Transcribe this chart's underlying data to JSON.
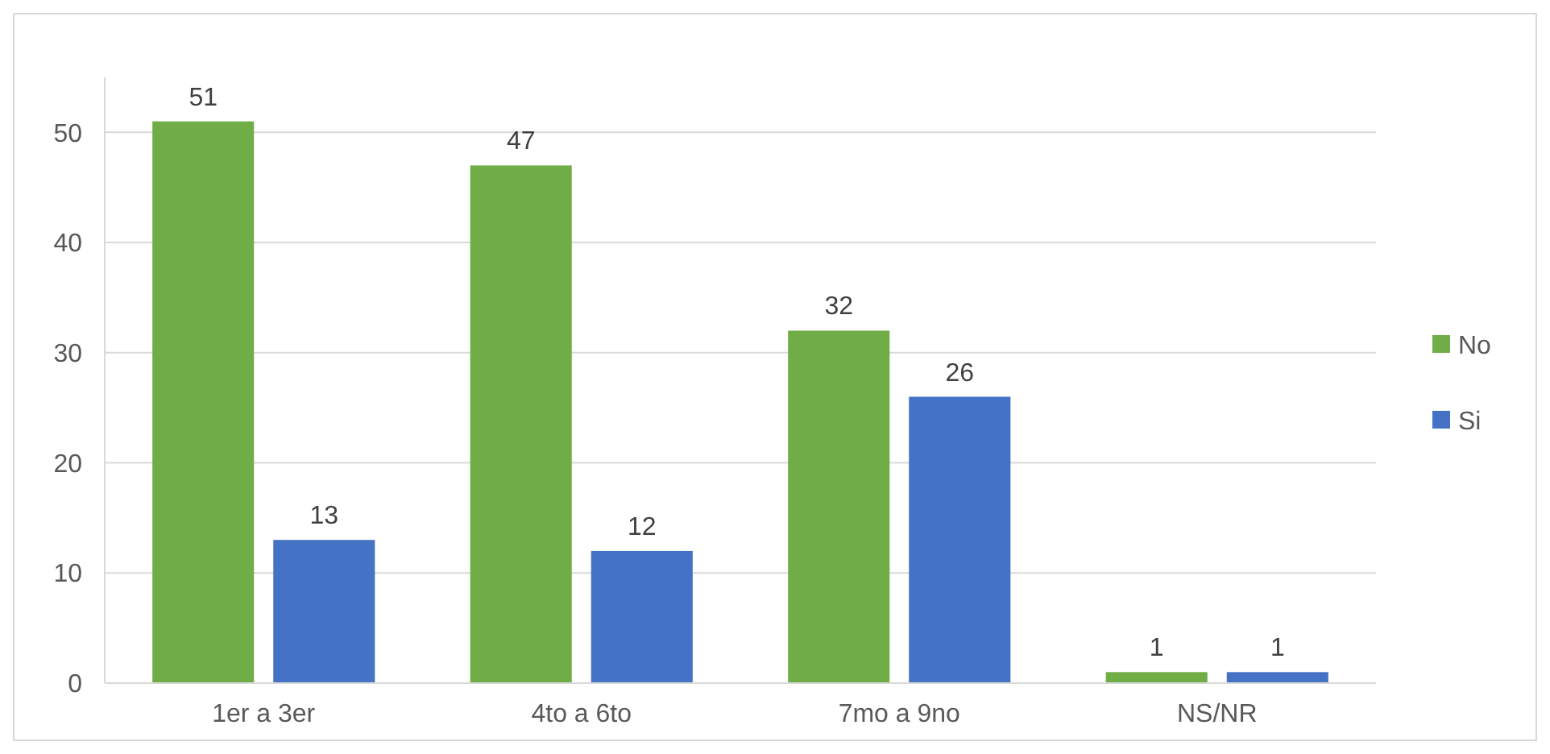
{
  "chart_data": {
    "type": "bar",
    "categories": [
      "1er a 3er",
      "4to a 6to",
      "7mo a 9no",
      "NS/NR"
    ],
    "series": [
      {
        "name": "No",
        "color": "#70ad47",
        "values": [
          51,
          47,
          32,
          1
        ]
      },
      {
        "name": "Si",
        "color": "#4472c4",
        "values": [
          13,
          12,
          26,
          1
        ]
      }
    ],
    "ylim": [
      0,
      55
    ],
    "yticks": [
      0,
      10,
      20,
      30,
      40,
      50
    ],
    "grid": "y",
    "legend": "right",
    "data_labels": true
  }
}
